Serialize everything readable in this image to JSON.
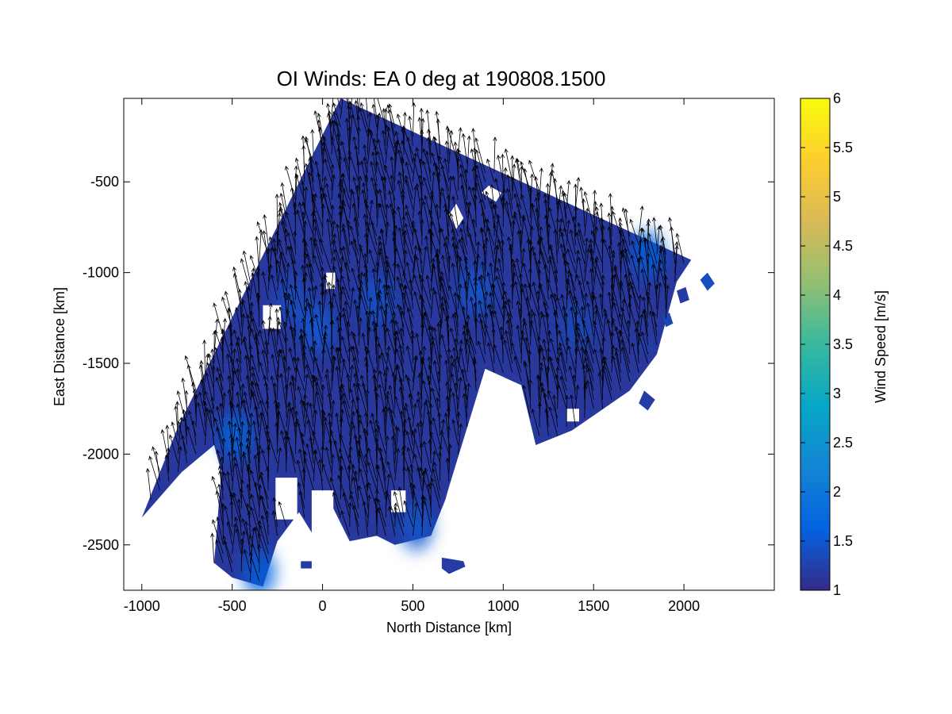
{
  "chart_data": {
    "type": "heatmap",
    "title": "OI Winds: EA 0 deg at 190808.1500",
    "xlabel": "North Distance [km]",
    "ylabel": "East Distance [km]",
    "xlim": [
      -1100,
      2500
    ],
    "ylim": [
      -2750,
      -40
    ],
    "x_ticks": [
      -1000,
      -500,
      0,
      500,
      1000,
      1500,
      2000
    ],
    "x_tick_labels": [
      "-1000",
      "-500",
      "0",
      "500",
      "1000",
      "1500",
      "2000"
    ],
    "y_ticks": [
      -2500,
      -2000,
      -1500,
      -1000,
      -500
    ],
    "y_tick_labels": [
      "-2500",
      "-2000",
      "-1500",
      "-1000",
      "-500"
    ],
    "grid": false,
    "colorbar": {
      "label": "Wind Speed [m/s]",
      "limits": [
        1,
        6
      ],
      "ticks": [
        1,
        1.5,
        2,
        2.5,
        3,
        3.5,
        4,
        4.5,
        5,
        5.5,
        6
      ],
      "tick_labels": [
        "1",
        "1.5",
        "2",
        "2.5",
        "3",
        "3.5",
        "4",
        "4.5",
        "5",
        "5.5",
        "6"
      ],
      "colormap": [
        "#352a87",
        "#0363e1",
        "#1485d4",
        "#06a7c6",
        "#38b99e",
        "#92bf73",
        "#d9ba56",
        "#fcce2e",
        "#f9fb0e"
      ]
    },
    "field": {
      "background_speed": 1.15,
      "coverage_polygon": [
        [
          100,
          -40
        ],
        [
          2040,
          -930
        ],
        [
          1960,
          -1050
        ],
        [
          1850,
          -1450
        ],
        [
          1700,
          -1650
        ],
        [
          1380,
          -1870
        ],
        [
          1180,
          -1950
        ],
        [
          1100,
          -1620
        ],
        [
          900,
          -1530
        ],
        [
          700,
          -2180
        ],
        [
          680,
          -2250
        ],
        [
          600,
          -2450
        ],
        [
          400,
          -2500
        ],
        [
          300,
          -2450
        ],
        [
          150,
          -2480
        ],
        [
          60,
          -2300
        ],
        [
          -30,
          -2480
        ],
        [
          -130,
          -2320
        ],
        [
          -250,
          -2480
        ],
        [
          -330,
          -2730
        ],
        [
          -500,
          -2680
        ],
        [
          -600,
          -2600
        ],
        [
          -560,
          -2100
        ],
        [
          -600,
          -1950
        ],
        [
          -780,
          -2100
        ],
        [
          -1000,
          -2350
        ],
        [
          -800,
          -1850
        ]
      ],
      "highlights": [
        {
          "x": -30,
          "y": -1300,
          "speed": 1.55
        },
        {
          "x": 300,
          "y": -1150,
          "speed": 1.45
        },
        {
          "x": 850,
          "y": -1100,
          "speed": 1.5
        },
        {
          "x": 1800,
          "y": -900,
          "speed": 1.6
        },
        {
          "x": -480,
          "y": -1900,
          "speed": 1.7
        },
        {
          "x": -350,
          "y": -2650,
          "speed": 1.6
        },
        {
          "x": 520,
          "y": -2400,
          "speed": 1.5
        },
        {
          "x": -170,
          "y": -1150,
          "speed": 1.4
        },
        {
          "x": 1400,
          "y": -1300,
          "speed": 1.35
        }
      ],
      "gaps": [
        [
          [
            -330,
            -1180
          ],
          [
            -230,
            -1180
          ],
          [
            -230,
            -1310
          ],
          [
            -330,
            -1310
          ]
        ],
        [
          [
            20,
            -1000
          ],
          [
            70,
            -1000
          ],
          [
            70,
            -1090
          ],
          [
            20,
            -1090
          ]
        ],
        [
          [
            700,
            -680
          ],
          [
            740,
            -620
          ],
          [
            780,
            -700
          ],
          [
            740,
            -760
          ]
        ],
        [
          [
            880,
            -560
          ],
          [
            920,
            -520
          ],
          [
            990,
            -560
          ],
          [
            960,
            -610
          ]
        ],
        [
          [
            -60,
            -2200
          ],
          [
            60,
            -2200
          ],
          [
            60,
            -2550
          ],
          [
            -60,
            -2550
          ]
        ],
        [
          [
            -260,
            -2130
          ],
          [
            -140,
            -2130
          ],
          [
            -140,
            -2360
          ],
          [
            -260,
            -2360
          ]
        ],
        [
          [
            380,
            -2200
          ],
          [
            460,
            -2200
          ],
          [
            460,
            -2320
          ],
          [
            380,
            -2320
          ]
        ],
        [
          [
            1350,
            -1750
          ],
          [
            1420,
            -1750
          ],
          [
            1420,
            -1820
          ],
          [
            1350,
            -1820
          ]
        ]
      ],
      "islands": [
        {
          "polygon": [
            [
              2090,
              -1040
            ],
            [
              2130,
              -1000
            ],
            [
              2170,
              -1060
            ],
            [
              2130,
              -1100
            ]
          ],
          "speed": 1.4
        },
        {
          "polygon": [
            [
              1960,
              -1100
            ],
            [
              2010,
              -1080
            ],
            [
              2030,
              -1150
            ],
            [
              1980,
              -1170
            ]
          ],
          "speed": 1.2
        },
        {
          "polygon": [
            [
              1880,
              -1240
            ],
            [
              1920,
              -1220
            ],
            [
              1940,
              -1280
            ],
            [
              1900,
              -1300
            ]
          ],
          "speed": 1.3
        },
        {
          "polygon": [
            [
              1730,
              -1370
            ],
            [
              1830,
              -1370
            ],
            [
              1830,
              -1440
            ],
            [
              1730,
              -1440
            ]
          ],
          "speed": 1.2
        },
        {
          "polygon": [
            [
              1280,
              -1810
            ],
            [
              1330,
              -1790
            ],
            [
              1350,
              -1840
            ],
            [
              1300,
              -1860
            ]
          ],
          "speed": 1.2
        },
        {
          "polygon": [
            [
              1780,
              -1650
            ],
            [
              1840,
              -1700
            ],
            [
              1800,
              -1760
            ],
            [
              1750,
              -1720
            ]
          ],
          "speed": 1.2
        },
        {
          "polygon": [
            [
              -120,
              -2590
            ],
            [
              -60,
              -2590
            ],
            [
              -60,
              -2630
            ],
            [
              -120,
              -2630
            ]
          ],
          "speed": 1.2
        },
        {
          "polygon": [
            [
              660,
              -2570
            ],
            [
              780,
              -2590
            ],
            [
              790,
              -2620
            ],
            [
              700,
              -2660
            ],
            [
              660,
              -2630
            ]
          ],
          "speed": 1.2
        },
        {
          "polygon": [
            [
              -590,
              -2490
            ],
            [
              -520,
              -2490
            ],
            [
              -520,
              -2540
            ],
            [
              -590,
              -2540
            ]
          ],
          "speed": 1.2
        }
      ]
    },
    "wind_vectors": {
      "grid_spacing_km": 50,
      "mean_direction": "north-northwest",
      "mean_speed_ms": 1.2,
      "arrow_color": "#000000"
    }
  }
}
